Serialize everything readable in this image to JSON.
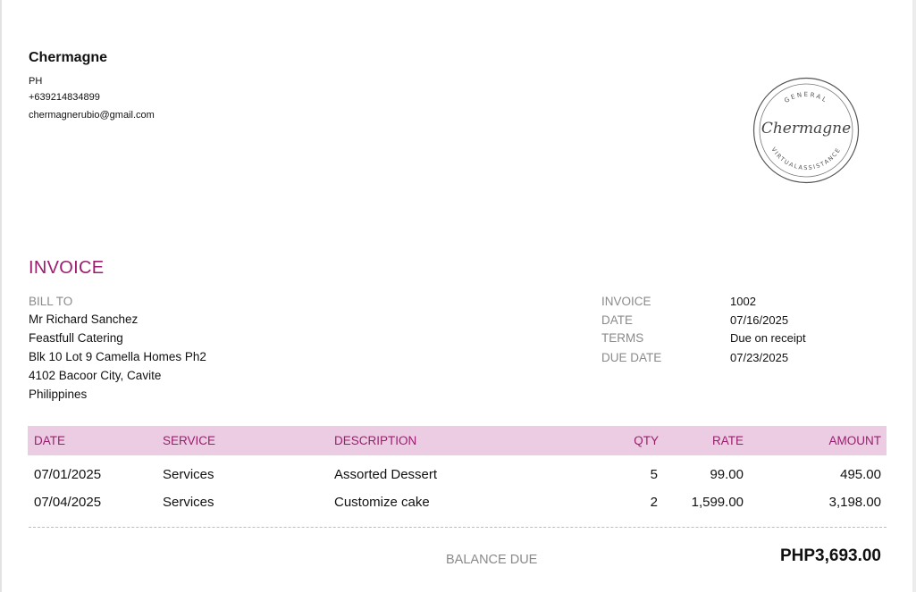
{
  "company": {
    "name": "Chermagne",
    "country": "PH",
    "phone": "+639214834899",
    "email": "chermagnerubio@gmail.com"
  },
  "logo": {
    "script_name": "Chermagne",
    "top_arc": "GENERAL",
    "bottom_arc": "VIRTUALASSISTANCE",
    "stroke_color": "#555555"
  },
  "invoice": {
    "title": "INVOICE",
    "bill_to_label": "BILL TO",
    "bill_to": [
      "Mr Richard Sanchez",
      "Feastfull Catering",
      "Blk 10 Lot 9 Camella Homes Ph2",
      "4102 Bacoor City, Cavite",
      "Philippines"
    ],
    "meta": [
      {
        "label": "INVOICE",
        "value": "1002"
      },
      {
        "label": "DATE",
        "value": "07/16/2025"
      },
      {
        "label": "TERMS",
        "value": "Due on receipt"
      },
      {
        "label": "DUE DATE",
        "value": "07/23/2025"
      }
    ]
  },
  "table": {
    "headers": {
      "date": "DATE",
      "service": "SERVICE",
      "description": "DESCRIPTION",
      "qty": "QTY",
      "rate": "RATE",
      "amount": "AMOUNT"
    },
    "rows": [
      {
        "date": "07/01/2025",
        "service": "Services",
        "description": "Assorted Dessert",
        "qty": "5",
        "rate": "99.00",
        "amount": "495.00"
      },
      {
        "date": "07/04/2025",
        "service": "Services",
        "description": "Customize cake",
        "qty": "2",
        "rate": "1,599.00",
        "amount": "3,198.00"
      }
    ]
  },
  "balance": {
    "label": "BALANCE DUE",
    "value": "PHP3,693.00"
  },
  "colors": {
    "accent": "#9c1d6e",
    "header_bg": "#ecccE3",
    "muted": "#8a8a8a"
  }
}
